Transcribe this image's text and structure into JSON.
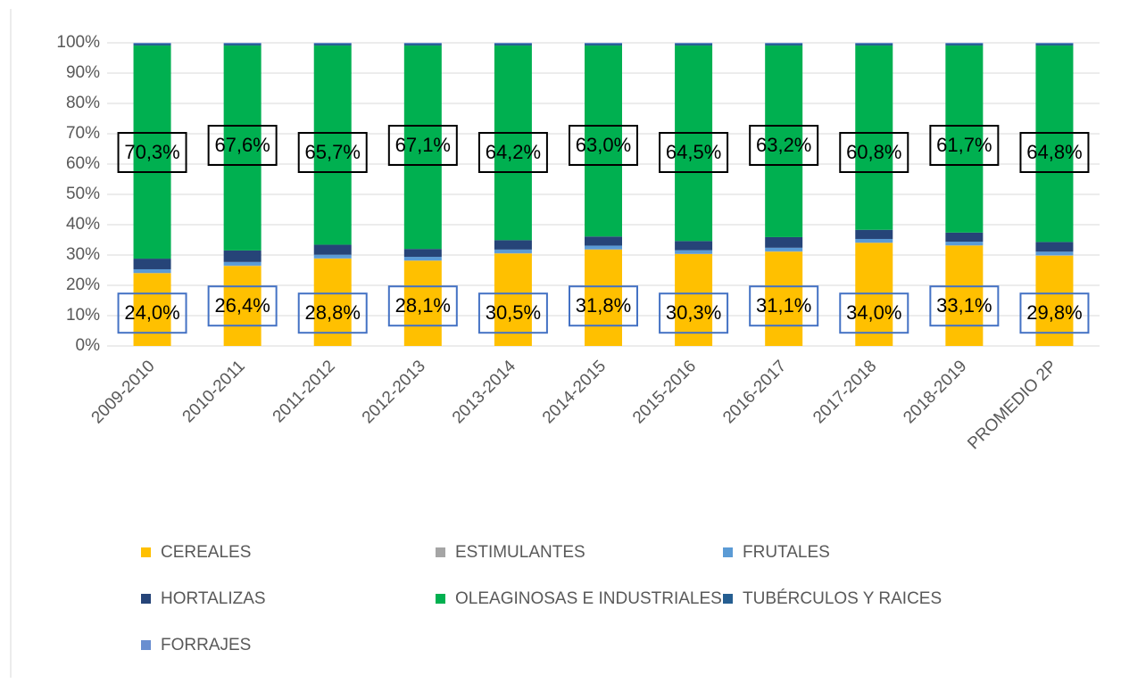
{
  "chart_data": {
    "type": "bar",
    "stacked": true,
    "categories": [
      "2009-2010",
      "2010-2011",
      "2011-2012",
      "2012-2013",
      "2013-2014",
      "2014-2015",
      "2015-2016",
      "2016-2017",
      "2017-2018",
      "2018-2019",
      "PROMEDIO 2P"
    ],
    "series": [
      {
        "name": "CEREALES",
        "color": "#ffc000",
        "values": [
          24.0,
          26.4,
          28.8,
          28.1,
          30.5,
          31.8,
          30.3,
          31.1,
          34.0,
          33.1,
          29.8
        ],
        "value_labels": [
          "24,0%",
          "26,4%",
          "28,8%",
          "28,1%",
          "30,5%",
          "31,8%",
          "30,3%",
          "31,1%",
          "34,0%",
          "33,1%",
          "29,8%"
        ]
      },
      {
        "name": "ESTIMULANTES",
        "color": "#a5a5a5",
        "values": [
          0.1,
          0.1,
          0.1,
          0.1,
          0.1,
          0.1,
          0.1,
          0.1,
          0.1,
          0.1,
          0.1
        ]
      },
      {
        "name": "FRUTALES",
        "color": "#5b9bd5",
        "values": [
          1.2,
          1.2,
          1.2,
          1.2,
          1.2,
          1.2,
          1.2,
          1.2,
          1.2,
          1.2,
          1.2
        ]
      },
      {
        "name": "HORTALIZAS",
        "color": "#264478",
        "values": [
          3.5,
          3.8,
          3.3,
          2.6,
          3.1,
          3.0,
          3.0,
          3.5,
          3.0,
          3.0,
          3.2
        ]
      },
      {
        "name": "OLEAGINOSAS E INDUSTRIALES",
        "color": "#00b050",
        "values": [
          70.3,
          67.6,
          65.7,
          67.1,
          64.2,
          63.0,
          64.5,
          63.2,
          60.8,
          61.7,
          64.8
        ],
        "value_labels": [
          "70,3%",
          "67,6%",
          "65,7%",
          "67,1%",
          "64,2%",
          "63,0%",
          "64,5%",
          "63,2%",
          "60,8%",
          "61,7%",
          "64,8%"
        ]
      },
      {
        "name": "TUBÉRCULOS Y RAICES",
        "color": "#255e91",
        "values": [
          0.6,
          0.6,
          0.6,
          0.6,
          0.6,
          0.6,
          0.6,
          0.6,
          0.6,
          0.6,
          0.6
        ]
      },
      {
        "name": "FORRAJES",
        "color": "#698ed0",
        "values": [
          0.3,
          0.3,
          0.3,
          0.3,
          0.3,
          0.3,
          0.3,
          0.3,
          0.3,
          0.3,
          0.3
        ]
      }
    ],
    "ylim": [
      0,
      100
    ],
    "yticks": [
      {
        "value": 0,
        "label": "0%"
      },
      {
        "value": 10,
        "label": "10%"
      },
      {
        "value": 20,
        "label": "20%"
      },
      {
        "value": 30,
        "label": "30%"
      },
      {
        "value": 40,
        "label": "40%"
      },
      {
        "value": 50,
        "label": "50%"
      },
      {
        "value": 60,
        "label": "60%"
      },
      {
        "value": 70,
        "label": "70%"
      },
      {
        "value": 80,
        "label": "80%"
      },
      {
        "value": 90,
        "label": "90%"
      },
      {
        "value": 100,
        "label": "100%"
      }
    ],
    "grid": true
  }
}
